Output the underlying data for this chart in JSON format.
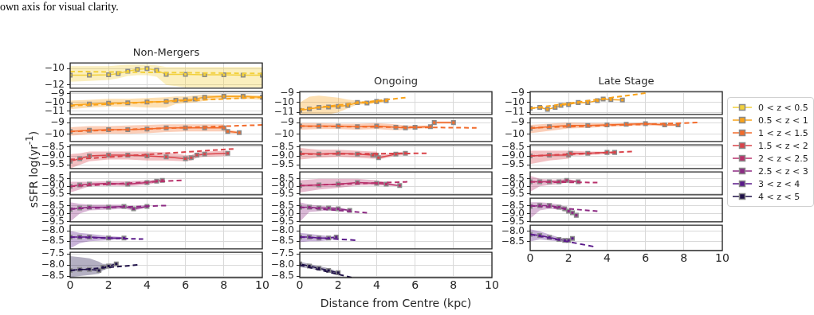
{
  "chart_data": [
    {
      "type": "line",
      "title": "Non-Mergers",
      "ylabel": "sSFR log(yr$^{-1}$)",
      "legend": "right",
      "annotations": [
        "own axis for visual clarity."
      ],
      "xlim": [
        0,
        10
      ],
      "xticks": [
        0,
        2,
        4,
        6,
        8,
        10
      ],
      "ylim": [
        -12.4,
        -9.3
      ],
      "yticks": [
        {
          "value": -12,
          "label": "−12"
        },
        {
          "value": -10,
          "label": "−10"
        }
      ],
      "grid": true,
      "tick_labels": "y",
      "series": [
        {
          "type": "line",
          "name": "0 < z < 0.5",
          "color": "#f2d03b",
          "marker": "square",
          "x": [
            0,
            1,
            2,
            2.5,
            3,
            3.5,
            4,
            4.5,
            5,
            6,
            7,
            8,
            9,
            10
          ],
          "values": [
            -10.8,
            -10.8,
            -10.75,
            -10.6,
            -10.3,
            -10.1,
            -10.0,
            -10.2,
            -10.7,
            -10.7,
            -10.75,
            -10.75,
            -10.8,
            -10.8
          ],
          "lower": [
            -11.6,
            -11.5,
            -11.4,
            -11.2,
            -10.9,
            -10.8,
            -10.8,
            -11.0,
            -12.0,
            -12.3,
            -12.3,
            -12.3,
            -12.3,
            -12.3
          ],
          "upper": [
            -9.7,
            -9.7,
            -9.7,
            -9.6,
            -9.5,
            -9.5,
            -9.5,
            -9.6,
            -9.8,
            -9.8,
            -9.8,
            -9.8,
            -9.8,
            -9.8
          ]
        },
        {
          "type": "line",
          "color": "#f2d03b",
          "marker": "none",
          "line_style": "dashed",
          "x": [
            0,
            10
          ],
          "values": [
            -10.35,
            -10.6
          ]
        }
      ]
    },
    {
      "type": "line",
      "xlim": [
        0,
        10
      ],
      "xticks": [
        0,
        2,
        4,
        6,
        8,
        10
      ],
      "ylim": [
        -11.4,
        -8.75
      ],
      "yticks": [
        {
          "value": -11,
          "label": "−11"
        },
        {
          "value": -10,
          "label": "−10"
        },
        {
          "value": -9,
          "label": "−9"
        }
      ],
      "grid": true,
      "tick_labels": "y",
      "series": [
        {
          "type": "line",
          "name": "0.5 < z < 1",
          "color": "#f9a31a",
          "marker": "square",
          "x": [
            0,
            1,
            2,
            3,
            4,
            5,
            5.5,
            6,
            6.5,
            7,
            8,
            9,
            10
          ],
          "values": [
            -10.3,
            -10.2,
            -10.1,
            -10.05,
            -9.95,
            -9.9,
            -9.75,
            -9.7,
            -9.6,
            -9.4,
            -9.3,
            -9.3,
            -9.4
          ],
          "lower": [
            -10.8,
            -10.6,
            -10.5,
            -10.5,
            -10.6,
            -10.6,
            -10.2,
            -10.1,
            -10.0,
            -9.8,
            -9.6,
            -9.6,
            -9.7
          ],
          "upper": [
            -9.8,
            -9.7,
            -9.6,
            -9.6,
            -9.5,
            -9.4,
            -9.3,
            -9.3,
            -9.2,
            -9.1,
            -9.1,
            -9.1,
            -9.2
          ]
        },
        {
          "type": "line",
          "color": "#f9a31a",
          "marker": "none",
          "line_style": "dashed",
          "x": [
            0,
            10
          ],
          "values": [
            -10.4,
            -9.4
          ]
        }
      ]
    },
    {
      "type": "line",
      "xlim": [
        0,
        10
      ],
      "xticks": [
        0,
        2,
        4,
        6,
        8,
        10
      ],
      "ylim": [
        -10.6,
        -8.6
      ],
      "yticks": [
        {
          "value": -10,
          "label": "−10"
        },
        {
          "value": -9,
          "label": "−9"
        }
      ],
      "grid": true,
      "tick_labels": "y",
      "series": [
        {
          "type": "line",
          "name": "1 < z < 1.5",
          "color": "#f26b2b",
          "marker": "square",
          "x": [
            0,
            1,
            2,
            3,
            4,
            5,
            6,
            7,
            8,
            8.2,
            8.8
          ],
          "values": [
            -9.75,
            -9.65,
            -9.6,
            -9.6,
            -9.55,
            -9.45,
            -9.45,
            -9.45,
            -9.45,
            -9.75,
            -9.85
          ],
          "lower": [
            -10.1,
            -10.0,
            -9.95,
            -9.95,
            -9.9,
            -9.8,
            -9.75,
            -9.75,
            -9.75,
            -9.9,
            -9.95
          ],
          "upper": [
            -9.4,
            -9.3,
            -9.3,
            -9.25,
            -9.2,
            -9.15,
            -9.15,
            -9.15,
            -9.15,
            -9.6,
            -9.75
          ]
        },
        {
          "type": "line",
          "color": "#f26b2b",
          "marker": "none",
          "line_style": "dashed",
          "x": [
            0,
            10
          ],
          "values": [
            -9.75,
            -9.2
          ]
        }
      ]
    },
    {
      "type": "line",
      "xlim": [
        0,
        10
      ],
      "xticks": [
        0,
        2,
        4,
        6,
        8,
        10
      ],
      "ylim": [
        -9.7,
        -8.38
      ],
      "yticks": [
        {
          "value": -9.5,
          "label": "−9.5"
        },
        {
          "value": -9,
          "label": "−9.0"
        },
        {
          "value": -8.5,
          "label": "−8.5"
        }
      ],
      "grid": true,
      "tick_labels": "y",
      "series": [
        {
          "type": "line",
          "name": "1.5 < z < 2",
          "color": "#d9434a",
          "marker": "square",
          "x": [
            0,
            0.5,
            1,
            2,
            3,
            4,
            5,
            6,
            6.3,
            6.6,
            7,
            8.2
          ],
          "values": [
            -9.3,
            -9.15,
            -9.0,
            -8.95,
            -8.95,
            -9.0,
            -9.05,
            -9.15,
            -9.1,
            -8.95,
            -8.9,
            -8.85
          ],
          "lower": [
            -9.7,
            -9.5,
            -9.3,
            -9.2,
            -9.2,
            -9.25,
            -9.25,
            -9.3,
            -9.25,
            -9.1,
            -9.05,
            -9.0
          ],
          "upper": [
            -8.9,
            -8.85,
            -8.75,
            -8.75,
            -8.75,
            -8.75,
            -8.8,
            -8.95,
            -8.95,
            -8.8,
            -8.75,
            -8.7
          ]
        },
        {
          "type": "line",
          "color": "#d9434a",
          "marker": "none",
          "line_style": "dashed",
          "x": [
            0,
            8.5
          ],
          "values": [
            -9.2,
            -8.6
          ]
        }
      ]
    },
    {
      "type": "line",
      "xlim": [
        0,
        10
      ],
      "xticks": [
        0,
        2,
        4,
        6,
        8,
        10
      ],
      "ylim": [
        -9.55,
        -8.05
      ],
      "yticks": [
        {
          "value": -9.5,
          "label": "−9.5"
        },
        {
          "value": -9,
          "label": "−9.0"
        },
        {
          "value": -8.5,
          "label": "−8.5"
        }
      ],
      "grid": true,
      "tick_labels": "y",
      "series": [
        {
          "type": "line",
          "name": "2 < z < 2.5",
          "color": "#b8316b",
          "marker": "square",
          "x": [
            0,
            0.5,
            1,
            2,
            3,
            4,
            4.5,
            4.8
          ],
          "values": [
            -9.0,
            -8.9,
            -8.85,
            -8.8,
            -8.85,
            -8.75,
            -8.65,
            -8.6
          ],
          "lower": [
            -9.4,
            -9.2,
            -9.0,
            -8.95,
            -9.0,
            -8.9,
            -8.75,
            -8.7
          ],
          "upper": [
            -8.7,
            -8.7,
            -8.7,
            -8.65,
            -8.65,
            -8.6,
            -8.55,
            -8.5
          ]
        },
        {
          "type": "line",
          "color": "#b8316b",
          "marker": "none",
          "line_style": "dashed",
          "x": [
            0,
            5.8
          ],
          "values": [
            -9.0,
            -8.6
          ]
        }
      ]
    },
    {
      "type": "line",
      "xlim": [
        0,
        10
      ],
      "xticks": [
        0,
        2,
        4,
        6,
        8,
        10
      ],
      "ylim": [
        -9.5,
        -8.05
      ],
      "yticks": [
        {
          "value": -9.5,
          "label": "−9.5"
        },
        {
          "value": -9,
          "label": "−9.0"
        },
        {
          "value": -8.5,
          "label": "−8.5"
        }
      ],
      "grid": true,
      "tick_labels": "y",
      "series": [
        {
          "type": "line",
          "name": "2.5 < z < 3",
          "color": "#8c2a83",
          "marker": "square",
          "x": [
            0,
            0.5,
            1,
            2,
            2.8,
            3.3,
            4
          ],
          "values": [
            -8.75,
            -8.65,
            -8.6,
            -8.6,
            -8.55,
            -8.7,
            -8.55
          ],
          "lower": [
            -9.5,
            -9.0,
            -8.8,
            -8.75,
            -8.7,
            -8.8,
            -8.65
          ],
          "upper": [
            -8.3,
            -8.4,
            -8.45,
            -8.45,
            -8.45,
            -8.6,
            -8.45
          ]
        },
        {
          "type": "line",
          "color": "#8c2a83",
          "marker": "none",
          "line_style": "dashed",
          "x": [
            0,
            5
          ],
          "values": [
            -8.7,
            -8.5
          ]
        }
      ]
    },
    {
      "type": "line",
      "xlim": [
        0,
        10
      ],
      "xticks": [
        0,
        2,
        4,
        6,
        8,
        10
      ],
      "ylim": [
        -8.87,
        -7.73
      ],
      "yticks": [
        {
          "value": -8.5,
          "label": "−8.5"
        },
        {
          "value": -8,
          "label": "−8.0"
        }
      ],
      "grid": true,
      "tick_labels": "y",
      "series": [
        {
          "type": "line",
          "name": "3 < z < 4",
          "color": "#5a1a8a",
          "marker": "square",
          "x": [
            0,
            0.5,
            1,
            2,
            2.8
          ],
          "values": [
            -8.3,
            -8.3,
            -8.3,
            -8.35,
            -8.35
          ],
          "lower": [
            -8.85,
            -8.6,
            -8.5,
            -8.45,
            -8.4
          ],
          "upper": [
            -8.0,
            -8.1,
            -8.15,
            -8.25,
            -8.3
          ]
        },
        {
          "type": "line",
          "color": "#5a1a8a",
          "marker": "none",
          "line_style": "dashed",
          "x": [
            0,
            3.8
          ],
          "values": [
            -8.3,
            -8.4
          ]
        }
      ]
    },
    {
      "type": "line",
      "xlim": [
        0,
        10
      ],
      "xticks": [
        0,
        2,
        4,
        6,
        8,
        10
      ],
      "ylim": [
        -8.57,
        -7.43
      ],
      "yticks": [
        {
          "value": -8.5,
          "label": "−8.5"
        },
        {
          "value": -8,
          "label": "−8.0"
        },
        {
          "value": -7.5,
          "label": "−7.5"
        }
      ],
      "grid": true,
      "series": [
        {
          "type": "line",
          "name": "4 < z < 5",
          "color": "#1f1147",
          "marker": "square",
          "x": [
            0,
            0.5,
            1,
            1.5,
            1.7,
            2,
            2.4
          ],
          "values": [
            -8.25,
            -8.2,
            -8.2,
            -8.25,
            -8.1,
            -8.05,
            -7.95
          ],
          "lower": [
            -8.55,
            -8.5,
            -8.45,
            -8.4,
            -8.25,
            -8.15,
            -8.05
          ],
          "upper": [
            -7.6,
            -7.65,
            -7.7,
            -7.85,
            -7.95,
            -7.95,
            -7.9
          ]
        },
        {
          "type": "line",
          "color": "#1f1147",
          "marker": "none",
          "line_style": "dashed",
          "x": [
            0,
            3.5
          ],
          "values": [
            -8.25,
            -8.0
          ]
        }
      ]
    },
    {
      "type": "line",
      "title": "Ongoing",
      "xlim": [
        0,
        10
      ],
      "xticks": [
        0,
        2,
        4,
        6,
        8,
        10
      ],
      "ylim": [
        -11.2,
        -8.9
      ],
      "yticks": [
        {
          "value": -11,
          "label": "−11"
        },
        {
          "value": -10,
          "label": "−10"
        },
        {
          "value": -9,
          "label": "−9"
        }
      ],
      "grid": true,
      "tick_labels": "y",
      "series": [
        {
          "type": "line",
          "name": "0.5 < z < 1",
          "color": "#f9a31a",
          "marker": "square",
          "x": [
            0,
            0.5,
            1,
            1.5,
            2,
            2.5,
            3,
            3.5,
            4,
            4.5
          ],
          "values": [
            -10.8,
            -10.65,
            -10.5,
            -10.45,
            -10.4,
            -10.3,
            -10.0,
            -10.05,
            -9.9,
            -9.8
          ],
          "lower": [
            -11.2,
            -11.2,
            -11.2,
            -11.2,
            -11.0,
            -10.6,
            -10.2,
            -10.2,
            -10.05,
            -9.95
          ],
          "upper": [
            -10.0,
            -9.4,
            -9.3,
            -9.4,
            -9.5,
            -9.7,
            -9.8,
            -9.9,
            -9.75,
            -9.65
          ]
        },
        {
          "type": "line",
          "color": "#f9a31a",
          "marker": "none",
          "line_style": "dashed",
          "x": [
            0,
            5.5
          ],
          "values": [
            -10.7,
            -9.5
          ]
        }
      ]
    },
    {
      "type": "line",
      "xlim": [
        0,
        10
      ],
      "xticks": [
        0,
        2,
        4,
        6,
        8,
        10
      ],
      "ylim": [
        -10.6,
        -8.6
      ],
      "yticks": [
        {
          "value": -10,
          "label": "−10"
        },
        {
          "value": -9,
          "label": "−9"
        }
      ],
      "grid": true,
      "tick_labels": "y",
      "series": [
        {
          "type": "line",
          "name": "1 < z < 1.5",
          "color": "#f26b2b",
          "marker": "square",
          "x": [
            0,
            1,
            2,
            3,
            4,
            5,
            5.5,
            6,
            6.8,
            7,
            8
          ],
          "values": [
            -9.3,
            -9.3,
            -9.3,
            -9.35,
            -9.3,
            -9.4,
            -9.45,
            -9.4,
            -9.35,
            -9.0,
            -9.0
          ],
          "lower": [
            -9.6,
            -9.55,
            -9.55,
            -9.6,
            -9.55,
            -9.65,
            -9.6,
            -9.55,
            -9.45,
            -9.1,
            -9.1
          ],
          "upper": [
            -9.05,
            -9.05,
            -9.1,
            -9.1,
            -9.05,
            -9.15,
            -9.25,
            -9.25,
            -9.25,
            -8.9,
            -8.9
          ]
        },
        {
          "type": "line",
          "color": "#f26b2b",
          "marker": "none",
          "line_style": "dashed",
          "x": [
            0,
            9.2
          ],
          "values": [
            -9.3,
            -9.45
          ]
        }
      ]
    },
    {
      "type": "line",
      "xlim": [
        0,
        10
      ],
      "xticks": [
        0,
        2,
        4,
        6,
        8,
        10
      ],
      "ylim": [
        -9.7,
        -8.38
      ],
      "yticks": [
        {
          "value": -9.5,
          "label": "−9.5"
        },
        {
          "value": -9,
          "label": "−9.0"
        },
        {
          "value": -8.5,
          "label": "−8.5"
        }
      ],
      "grid": true,
      "tick_labels": "y",
      "series": [
        {
          "type": "line",
          "name": "1.5 < z < 2",
          "color": "#d9434a",
          "marker": "square",
          "x": [
            0,
            1,
            2,
            3,
            3.8,
            4.0,
            4.1,
            5,
            5.5
          ],
          "values": [
            -8.85,
            -8.9,
            -8.85,
            -8.9,
            -8.95,
            -8.95,
            -9.1,
            -8.9,
            -8.85
          ],
          "lower": [
            -9.2,
            -9.1,
            -9.05,
            -9.1,
            -9.15,
            -9.15,
            -9.2,
            -9.0,
            -8.95
          ],
          "upper": [
            -8.55,
            -8.65,
            -8.65,
            -8.7,
            -8.75,
            -8.75,
            -8.95,
            -8.8,
            -8.75
          ]
        },
        {
          "type": "line",
          "color": "#d9434a",
          "marker": "none",
          "line_style": "dashed",
          "x": [
            0,
            6.6
          ],
          "values": [
            -8.9,
            -8.85
          ]
        }
      ]
    },
    {
      "type": "line",
      "xlim": [
        0,
        10
      ],
      "xticks": [
        0,
        2,
        4,
        6,
        8,
        10
      ],
      "ylim": [
        -9.55,
        -8.05
      ],
      "yticks": [
        {
          "value": -9.5,
          "label": "−9.5"
        },
        {
          "value": -9,
          "label": "−9.0"
        },
        {
          "value": -8.5,
          "label": "−8.5"
        }
      ],
      "grid": true,
      "tick_labels": "y",
      "series": [
        {
          "type": "line",
          "name": "2 < z < 2.5",
          "color": "#b8316b",
          "marker": "square",
          "x": [
            0,
            1,
            2,
            3,
            4,
            4.5,
            5.2
          ],
          "values": [
            -8.95,
            -8.9,
            -8.85,
            -8.75,
            -8.8,
            -8.85,
            -8.95
          ],
          "lower": [
            -9.4,
            -9.2,
            -9.1,
            -8.95,
            -8.95,
            -8.95,
            -9.0
          ],
          "upper": [
            -8.6,
            -8.5,
            -8.5,
            -8.5,
            -8.6,
            -8.75,
            -8.9
          ]
        },
        {
          "type": "line",
          "color": "#b8316b",
          "marker": "none",
          "line_style": "dashed",
          "x": [
            0,
            5.6
          ],
          "values": [
            -8.95,
            -8.7
          ]
        }
      ]
    },
    {
      "type": "line",
      "xlim": [
        0,
        10
      ],
      "xticks": [
        0,
        2,
        4,
        6,
        8,
        10
      ],
      "ylim": [
        -9.5,
        -8.05
      ],
      "yticks": [
        {
          "value": -9.5,
          "label": "−9.5"
        },
        {
          "value": -9,
          "label": "−9.0"
        },
        {
          "value": -8.5,
          "label": "−8.5"
        }
      ],
      "grid": true,
      "tick_labels": "y",
      "series": [
        {
          "type": "line",
          "name": "2.5 < z < 3",
          "color": "#8c2a83",
          "marker": "square",
          "x": [
            0,
            0.5,
            1,
            1.5,
            2,
            2.6
          ],
          "values": [
            -8.6,
            -8.6,
            -8.65,
            -8.65,
            -8.7,
            -8.8
          ],
          "lower": [
            -9.5,
            -8.9,
            -8.85,
            -8.8,
            -8.8,
            -8.85
          ],
          "upper": [
            -8.3,
            -8.45,
            -8.5,
            -8.55,
            -8.6,
            -8.75
          ]
        },
        {
          "type": "line",
          "color": "#8c2a83",
          "marker": "none",
          "line_style": "dashed",
          "x": [
            0,
            3.5
          ],
          "values": [
            -8.6,
            -8.95
          ]
        }
      ]
    },
    {
      "type": "line",
      "xlim": [
        0,
        10
      ],
      "xticks": [
        0,
        2,
        4,
        6,
        8,
        10
      ],
      "ylim": [
        -8.87,
        -7.73
      ],
      "yticks": [
        {
          "value": -8.5,
          "label": "−8.5"
        },
        {
          "value": -8,
          "label": "−8.0"
        }
      ],
      "grid": true,
      "tick_labels": "y",
      "series": [
        {
          "type": "line",
          "name": "3 < z < 4",
          "color": "#5a1a8a",
          "marker": "square",
          "x": [
            0,
            0.5,
            1,
            1.5,
            1.9
          ],
          "values": [
            -8.3,
            -8.3,
            -8.35,
            -8.35,
            -8.3
          ],
          "lower": [
            -8.55,
            -8.5,
            -8.5,
            -8.45,
            -8.4
          ],
          "upper": [
            -8.1,
            -8.15,
            -8.2,
            -8.25,
            -8.25
          ]
        },
        {
          "type": "line",
          "color": "#5a1a8a",
          "marker": "none",
          "line_style": "dashed",
          "x": [
            0,
            2.9
          ],
          "values": [
            -8.3,
            -8.45
          ]
        }
      ]
    },
    {
      "type": "line",
      "xlabel": "Distance from Centre (kpc)",
      "xlim": [
        0,
        10
      ],
      "xticks": [
        0,
        2,
        4,
        6,
        8,
        10
      ],
      "ylim": [
        -8.57,
        -7.43
      ],
      "yticks": [
        {
          "value": -8.5,
          "label": "−8.5"
        },
        {
          "value": -8,
          "label": "−8.0"
        },
        {
          "value": -7.5,
          "label": "−7.5"
        }
      ],
      "grid": true,
      "series": [
        {
          "type": "line",
          "name": "4 < z < 5",
          "color": "#1f1147",
          "marker": "square",
          "x": [
            0,
            0.5,
            1,
            1.5,
            2
          ],
          "values": [
            -7.95,
            -8.05,
            -8.15,
            -8.25,
            -8.35
          ],
          "lower": [
            -8.1,
            -8.15,
            -8.25,
            -8.3,
            -8.4
          ],
          "upper": [
            -7.85,
            -7.95,
            -8.05,
            -8.15,
            -8.3
          ]
        },
        {
          "type": "line",
          "color": "#1f1147",
          "marker": "none",
          "line_style": "dashed",
          "x": [
            0,
            2.7
          ],
          "values": [
            -8.0,
            -8.57
          ]
        }
      ]
    },
    {
      "type": "line",
      "title": "Late Stage",
      "xlim": [
        0,
        10
      ],
      "xticks": [
        0,
        2,
        4,
        6,
        8,
        10
      ],
      "ylim": [
        -11.2,
        -8.9
      ],
      "yticks": [
        {
          "value": -11,
          "label": "−11"
        },
        {
          "value": -10,
          "label": "−10"
        },
        {
          "value": -9,
          "label": "−9"
        }
      ],
      "grid": true,
      "tick_labels": "y",
      "series": [
        {
          "type": "line",
          "name": "0.5 < z < 1",
          "color": "#f9a31a",
          "marker": "square",
          "x": [
            0,
            0.5,
            0.9,
            1.3,
            1.6,
            2,
            2.5,
            3,
            3.5,
            3.8,
            4.2,
            4.8
          ],
          "values": [
            -10.6,
            -10.5,
            -10.7,
            -10.5,
            -10.3,
            -10.2,
            -10.0,
            -10.0,
            -9.8,
            -9.65,
            -9.7,
            -9.75
          ]
        },
        {
          "type": "line",
          "color": "#f9a31a",
          "marker": "none",
          "line_style": "dashed",
          "x": [
            0,
            6
          ],
          "values": [
            -10.6,
            -9.05
          ]
        }
      ]
    },
    {
      "type": "line",
      "xlim": [
        0,
        10
      ],
      "xticks": [
        0,
        2,
        4,
        6,
        8,
        10
      ],
      "ylim": [
        -10.6,
        -8.6
      ],
      "yticks": [
        {
          "value": -10,
          "label": "−10"
        },
        {
          "value": -9,
          "label": "−9"
        }
      ],
      "grid": true,
      "tick_labels": "y",
      "series": [
        {
          "type": "line",
          "name": "1 < z < 1.5",
          "color": "#f26b2b",
          "marker": "square",
          "x": [
            0,
            1,
            2,
            3,
            4,
            5,
            6,
            7,
            7.7
          ],
          "values": [
            -9.5,
            -9.35,
            -9.25,
            -9.25,
            -9.2,
            -9.15,
            -9.1,
            -9.2,
            -9.2
          ],
          "lower": [
            -9.9,
            -9.7,
            -9.5,
            -9.45,
            -9.35,
            -9.3,
            -9.25,
            -9.3,
            -9.3
          ],
          "upper": [
            -9.2,
            -9.1,
            -9.0,
            -9.05,
            -9.05,
            -9.05,
            -9.0,
            -9.1,
            -9.1
          ]
        },
        {
          "type": "line",
          "color": "#f26b2b",
          "marker": "none",
          "line_style": "dashed",
          "x": [
            0,
            8.7
          ],
          "values": [
            -9.45,
            -9.0
          ]
        }
      ]
    },
    {
      "type": "line",
      "xlim": [
        0,
        10
      ],
      "xticks": [
        0,
        2,
        4,
        6,
        8,
        10
      ],
      "ylim": [
        -9.7,
        -8.38
      ],
      "yticks": [
        {
          "value": -9.5,
          "label": "−9.5"
        },
        {
          "value": -9,
          "label": "−9.0"
        },
        {
          "value": -8.5,
          "label": "−8.5"
        }
      ],
      "grid": true,
      "tick_labels": "y",
      "series": [
        {
          "type": "line",
          "name": "1.5 < z < 2",
          "color": "#d9434a",
          "marker": "square",
          "x": [
            0,
            1,
            2,
            2.1,
            3,
            4,
            4.4
          ],
          "values": [
            -9.0,
            -8.95,
            -8.95,
            -8.85,
            -8.85,
            -8.8,
            -8.8
          ],
          "lower": [
            -9.45,
            -9.25,
            -9.15,
            -9.0,
            -8.95,
            -8.9,
            -8.9
          ],
          "upper": [
            -8.7,
            -8.7,
            -8.7,
            -8.7,
            -8.75,
            -8.75,
            -8.75
          ]
        },
        {
          "type": "line",
          "color": "#d9434a",
          "marker": "none",
          "line_style": "dashed",
          "x": [
            0,
            5.3
          ],
          "values": [
            -9.0,
            -8.75
          ]
        }
      ]
    },
    {
      "type": "line",
      "xlim": [
        0,
        10
      ],
      "xticks": [
        0,
        2,
        4,
        6,
        8,
        10
      ],
      "ylim": [
        -9.55,
        -8.05
      ],
      "yticks": [
        {
          "value": -9.5,
          "label": "−9.5"
        },
        {
          "value": -9,
          "label": "−9.0"
        },
        {
          "value": -8.5,
          "label": "−8.5"
        }
      ],
      "grid": true,
      "tick_labels": "y",
      "series": [
        {
          "type": "line",
          "name": "2 < z < 2.5",
          "color": "#b8316b",
          "marker": "square",
          "x": [
            0,
            0.5,
            1,
            1.5,
            1.9,
            2.5
          ],
          "values": [
            -8.7,
            -8.7,
            -8.7,
            -8.7,
            -8.6,
            -8.7
          ],
          "lower": [
            -9.35,
            -9.0,
            -8.9,
            -8.85,
            -8.75,
            -8.75
          ],
          "upper": [
            -8.3,
            -8.5,
            -8.55,
            -8.55,
            -8.5,
            -8.65
          ]
        },
        {
          "type": "line",
          "color": "#b8316b",
          "marker": "none",
          "line_style": "dashed",
          "x": [
            0,
            3.5
          ],
          "values": [
            -8.7,
            -8.75
          ]
        }
      ]
    },
    {
      "type": "line",
      "xlim": [
        0,
        10
      ],
      "xticks": [
        0,
        2,
        4,
        6,
        8,
        10
      ],
      "ylim": [
        -9.5,
        -8.05
      ],
      "yticks": [
        {
          "value": -9.5,
          "label": "−9.5"
        },
        {
          "value": -9,
          "label": "−9.0"
        },
        {
          "value": -8.5,
          "label": "−8.5"
        }
      ],
      "grid": true,
      "tick_labels": "y",
      "series": [
        {
          "type": "line",
          "name": "2.5 < z < 3",
          "color": "#8c2a83",
          "marker": "square",
          "x": [
            0,
            0.5,
            1,
            1.5,
            1.8,
            2,
            2.2,
            2.4
          ],
          "values": [
            -8.55,
            -8.5,
            -8.5,
            -8.6,
            -8.7,
            -8.85,
            -8.95,
            -9.1
          ],
          "lower": [
            -9.3,
            -8.8,
            -8.7,
            -8.75,
            -8.85,
            -8.95,
            -9.05,
            -9.15
          ],
          "upper": [
            -8.3,
            -8.3,
            -8.35,
            -8.45,
            -8.55,
            -8.75,
            -8.85,
            -9.05
          ]
        },
        {
          "type": "line",
          "color": "#8c2a83",
          "marker": "none",
          "line_style": "dashed",
          "x": [
            0,
            3.5
          ],
          "values": [
            -8.5,
            -8.85
          ]
        }
      ]
    },
    {
      "type": "line",
      "xlim": [
        0,
        10
      ],
      "xticks": [
        0,
        2,
        4,
        6,
        8,
        10
      ],
      "ylim": [
        -8.95,
        -7.7
      ],
      "yticks": [
        {
          "value": -8.5,
          "label": "−8.5"
        },
        {
          "value": -8,
          "label": "−8.0"
        }
      ],
      "grid": true,
      "series": [
        {
          "type": "line",
          "name": "3 < z < 4",
          "color": "#5a1a8a",
          "marker": "square",
          "x": [
            0,
            0.5,
            1,
            1.5,
            1.8,
            2,
            2.2
          ],
          "values": [
            -8.15,
            -8.2,
            -8.3,
            -8.4,
            -8.45,
            -8.45,
            -8.35
          ],
          "lower": [
            -8.5,
            -8.4,
            -8.45,
            -8.5,
            -8.55,
            -8.5,
            -8.4
          ],
          "upper": [
            -7.9,
            -8.0,
            -8.15,
            -8.3,
            -8.35,
            -8.4,
            -8.3
          ]
        },
        {
          "type": "line",
          "color": "#5a1a8a",
          "marker": "none",
          "line_style": "dashed",
          "x": [
            0,
            3.3
          ],
          "values": [
            -8.15,
            -8.75
          ]
        }
      ]
    }
  ]
}
